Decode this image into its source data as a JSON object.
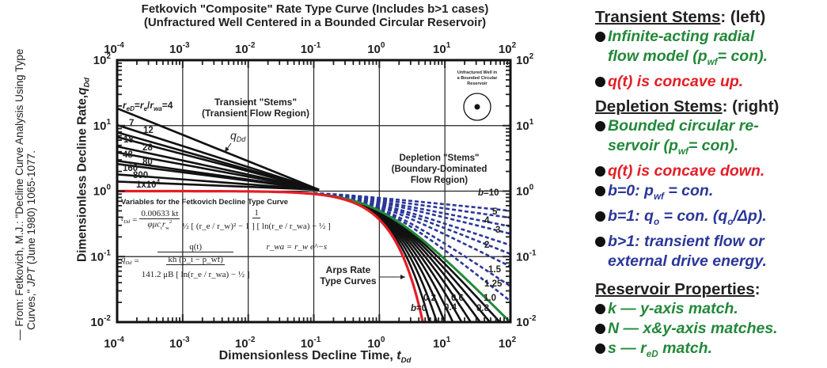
{
  "citation": {
    "line1": "— From: Fetkovich, M.J.: \"Decline Curve Analysis Using Type",
    "line2_a": "Curves,\" ",
    "line2_journal": "JPT",
    "line2_b": " (June 1980) 1065-1077."
  },
  "chart_data": {
    "type": "line",
    "title": "Fetkovich \"Composite\" Rate Type Curve (Includes b>1 cases)",
    "subtitle": "(Unfractured Well Centered in a Bounded Circular Reservoir)",
    "xlabel": "Dimensionless Decline Time, t_Dd",
    "ylabel": "Dimensionless Decline Rate, q_Dd",
    "x_scale": "log",
    "y_scale": "log",
    "xlim": [
      0.0001,
      100
    ],
    "ylim": [
      0.01,
      100
    ],
    "grid": "decades",
    "x_ticks": [
      "10-4",
      "10-3",
      "10-2",
      "10-1",
      "100",
      "101",
      "102"
    ],
    "y_ticks": [
      "102",
      "101",
      "100",
      "10-1",
      "10-2"
    ],
    "transient_stems": [
      {
        "label": "reD=re/rwa=4",
        "q_at_tmin": 18.3
      },
      {
        "label": "7",
        "q_at_tmin": 10.2
      },
      {
        "label": "12",
        "q_at_tmin": 7.9
      },
      {
        "label": "18",
        "q_at_tmin": 6.7
      },
      {
        "label": "28",
        "q_at_tmin": 4.8
      },
      {
        "label": "48",
        "q_at_tmin": 3.9
      },
      {
        "label": "80",
        "q_at_tmin": 2.9
      },
      {
        "label": "160",
        "q_at_tmin": 2.6
      },
      {
        "label": "800",
        "q_at_tmin": 1.8
      },
      {
        "label": "1x10^4",
        "q_at_tmin": 1.4
      }
    ],
    "transient_merge_point": {
      "t": 0.12,
      "q": 1.05
    },
    "arps_curves": {
      "model": "q = (1 + b t)^(-1/b); b=0: q = exp(-t)",
      "b0": {
        "b": 0,
        "label": "b=0",
        "color": "#e41e26"
      },
      "black": [
        0.1,
        0.2,
        0.3,
        0.4,
        0.5,
        0.6,
        0.7,
        0.8,
        0.9
      ],
      "black_labels": [
        "0.2",
        "0.4",
        "0.6",
        "0.8"
      ],
      "b1": {
        "b": 1,
        "label": "1.0",
        "color": "#23883a"
      },
      "dashed": [
        1.25,
        1.5,
        2,
        2.5,
        3,
        4,
        5,
        7,
        10
      ],
      "dashed_labels": [
        "b=10",
        "5",
        "4",
        "3",
        "2",
        "1.5",
        "1.25"
      ],
      "dashed_color": "#2a3799"
    },
    "annotations": {
      "transient_1": "Transient \"Stems\"",
      "transient_2": "(Transient Flow Region)",
      "qdd": "q",
      "qdd_sub": "Dd",
      "depletion_1": "Depletion \"Stems\"",
      "depletion_2": "(Boundary-Dominated",
      "depletion_3": "Flow Region)",
      "arps_1": "Arps Rate",
      "arps_2": "Type Curves",
      "well_1": "Unfractured Well in",
      "well_2": "a Bounded Circular",
      "well_3": "Reservoir"
    }
  },
  "formulas": {
    "heading": "Variables for the Fetkovich Decline Type Curve",
    "t_lhs": "t",
    "t_lhs_sub": "Dd",
    "eq": "=",
    "t_num1": "0.00633 kt",
    "t_den1": "φμc",
    "t_den1_sub": "t",
    "t_den1_b": "r",
    "t_den1_sub2": "w",
    "t_den1_sup": "2",
    "t_num2": "1",
    "t_den2": "½ [ (r_e / r_w)² − 1 ] [ ln(r_e / r_wa) − ½ ]",
    "q_lhs": "q",
    "q_lhs_sub": "Dd",
    "q_num": "q(t)",
    "q_den_a": "kh (p_i − p_wf)",
    "q_den_b": "141.2 μB [ ln(r_e / r_wa) − ½ ]",
    "rwa": "r_wa = r_w e^−s"
  },
  "right_panel": {
    "transient_heading": "Transient Stems",
    "transient_note": ":  (left)",
    "t_b1_a": "Infinite-acting radial",
    "t_b1_b": "flow model (p",
    "t_b1_sub": "wf",
    "t_b1_c": "= con).",
    "t_b2": "q(t) is concave up.",
    "depletion_heading": "Depletion Stems",
    "depletion_note": ": (right)",
    "d_b1_a": "Bounded circular re-",
    "d_b1_b": "servoir (p",
    "d_b1_sub": "wf",
    "d_b1_c": "= con).",
    "d_b2": "q(t) is concave down.",
    "d_b3_a": "b=0: p",
    "d_b3_sub": "wf",
    "d_b3_c": " = con.",
    "d_b4_a": "b=1: q",
    "d_b4_sub": "o",
    "d_b4_c": " = con.  (q",
    "d_b4_sub2": "o",
    "d_b4_d": "/Δp).",
    "d_b5_a": "b>1: transient flow or",
    "d_b5_b": "external drive energy.",
    "props_heading": "Reservoir Properties",
    "props_colon": ":",
    "p1": "k — y-axis match.",
    "p2": "N — x&y-axis matches.",
    "p3_a": "s — r",
    "p3_sub": "eD",
    "p3_b": " match."
  }
}
